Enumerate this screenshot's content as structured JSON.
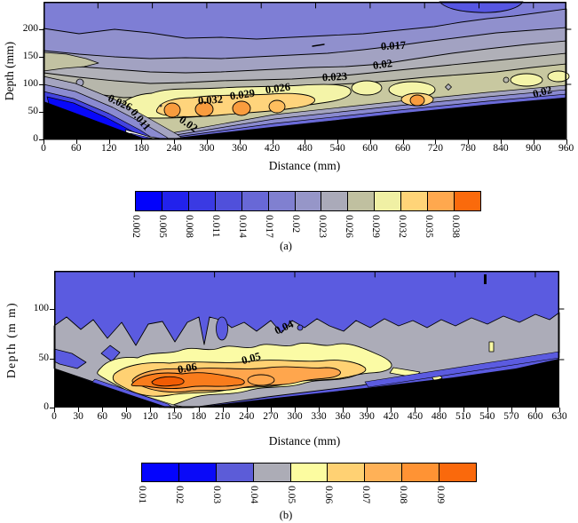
{
  "chart_data": [
    {
      "type": "contour-filled",
      "panel": "a",
      "caption": "(a)",
      "xlabel": "Distance (mm)",
      "ylabel": "Depth (mm)",
      "xlim": [
        0,
        960
      ],
      "depth_lim_mm": [
        0,
        250
      ],
      "x_ticks": [
        0,
        60,
        120,
        180,
        240,
        300,
        360,
        420,
        480,
        540,
        600,
        660,
        720,
        780,
        840,
        900,
        960
      ],
      "y_ticks": [
        0,
        50,
        100,
        150,
        200
      ],
      "levels": [
        0.002,
        0.005,
        0.008,
        0.011,
        0.014,
        0.017,
        0.02,
        0.023,
        0.026,
        0.029,
        0.032,
        0.035,
        0.038
      ],
      "colorbar": {
        "labels": [
          "0.002",
          "0.005",
          "0.008",
          "0.011",
          "0.014",
          "0.017",
          "0.02",
          "0.023",
          "0.026",
          "0.029",
          "0.032",
          "0.035",
          "0.038"
        ],
        "colors": [
          "#0202fc",
          "#2222ec",
          "#3a3ae3",
          "#5050db",
          "#6868d6",
          "#8080d0",
          "#9696c8",
          "#aaaab9",
          "#c0c0a0",
          "#f0f0a4",
          "#ffd478",
          "#ffa84e",
          "#fa6a0c"
        ]
      },
      "contour_labels": [
        {
          "text": "0.026",
          "x_mm": 140,
          "depth_mm": 66,
          "rot": 25
        },
        {
          "text": "0.011",
          "x_mm": 178,
          "depth_mm": 35,
          "rot": 50
        },
        {
          "text": "0.02",
          "x_mm": 266,
          "depth_mm": 27,
          "rot": 35
        },
        {
          "text": "0.032",
          "x_mm": 307,
          "depth_mm": 71,
          "rot": -4
        },
        {
          "text": "0.029",
          "x_mm": 365,
          "depth_mm": 81,
          "rot": -8
        },
        {
          "text": "0.026",
          "x_mm": 431,
          "depth_mm": 92,
          "rot": -8
        },
        {
          "text": "0.023",
          "x_mm": 535,
          "depth_mm": 113,
          "rot": -3
        },
        {
          "text": "0.02",
          "x_mm": 623,
          "depth_mm": 135,
          "rot": -8
        },
        {
          "text": "0.017",
          "x_mm": 643,
          "depth_mm": 169,
          "rot": -3
        },
        {
          "text": "0.02",
          "x_mm": 917,
          "depth_mm": 85,
          "rot": -15
        }
      ]
    },
    {
      "type": "contour-filled",
      "panel": "b",
      "caption": "(b)",
      "xlabel": "Distance (mm)",
      "ylabel": "Depth (m m)",
      "xlim": [
        0,
        630
      ],
      "depth_lim_mm": [
        0,
        139
      ],
      "x_ticks": [
        0,
        30,
        60,
        90,
        120,
        150,
        180,
        210,
        240,
        270,
        300,
        330,
        360,
        390,
        420,
        450,
        480,
        510,
        540,
        570,
        600,
        630
      ],
      "y_ticks": [
        0,
        50,
        100
      ],
      "levels": [
        0.01,
        0.02,
        0.03,
        0.04,
        0.05,
        0.06,
        0.07,
        0.08,
        0.09
      ],
      "colorbar": {
        "labels": [
          "0.01",
          "0.02",
          "0.03",
          "0.04",
          "0.05",
          "0.06",
          "0.07",
          "0.08",
          "0.09"
        ],
        "colors": [
          "#0404fd",
          "#0a0af8",
          "#5c5cd8",
          "#acacb6",
          "#fcfca0",
          "#ffd173",
          "#ffb157",
          "#ff9334",
          "#fa690c"
        ]
      },
      "contour_labels": [
        {
          "text": "0.04",
          "x_mm": 287,
          "depth_mm": 81,
          "rot": -25
        },
        {
          "text": "0.05",
          "x_mm": 246,
          "depth_mm": 50,
          "rot": -15
        },
        {
          "text": "0.06",
          "x_mm": 166,
          "depth_mm": 40,
          "rot": -10
        }
      ]
    }
  ]
}
